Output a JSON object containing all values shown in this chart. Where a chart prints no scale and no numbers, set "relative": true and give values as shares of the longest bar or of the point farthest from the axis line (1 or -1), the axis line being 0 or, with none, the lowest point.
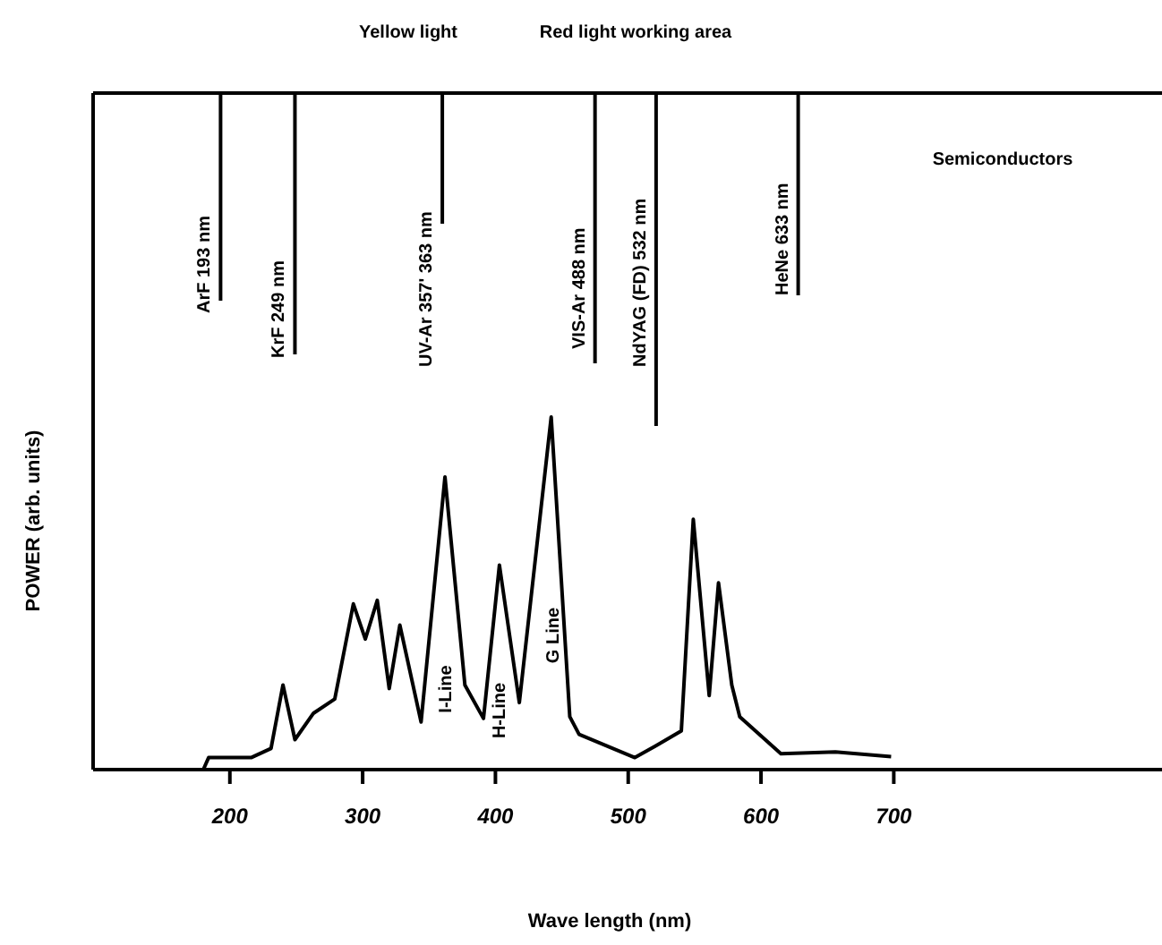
{
  "chart_data": {
    "type": "line",
    "relative": true,
    "xlabel": "Wave length (nm)",
    "ylabel": "POWER (arb. units)",
    "xlim": [
      97,
      902
    ],
    "xticks": [
      200,
      300,
      400,
      500,
      600,
      700
    ],
    "color": "#000000",
    "marker": "none",
    "line_style": "solid",
    "x": [
      180,
      184,
      216,
      231,
      240,
      249,
      263,
      279,
      293,
      302,
      311,
      320,
      328,
      344,
      362,
      377,
      391,
      403,
      418,
      442,
      456,
      463,
      505,
      521,
      540,
      549,
      561,
      568,
      578,
      584,
      615,
      656,
      698
    ],
    "values": [
      0,
      0.034,
      0.034,
      0.06,
      0.24,
      0.085,
      0.16,
      0.2,
      0.47,
      0.37,
      0.48,
      0.23,
      0.41,
      0.135,
      0.83,
      0.24,
      0.145,
      0.58,
      0.19,
      1,
      0.15,
      0.1,
      0.034,
      0.068,
      0.11,
      0.71,
      0.21,
      0.53,
      0.24,
      0.15,
      0.045,
      0.05,
      0.037
    ],
    "ref_lines": [
      {
        "axis": "x",
        "value": 193,
        "label": "ArF 193 nm"
      },
      {
        "axis": "x",
        "value": 249,
        "label": "KrF 249 nm"
      },
      {
        "axis": "x",
        "value": 360,
        "label": "UV-Ar 357' 363 nm"
      },
      {
        "axis": "x",
        "value": 475,
        "label": "VIS-Ar 488 nm"
      },
      {
        "axis": "x",
        "value": 521,
        "label": "NdYAG (FD) 532 nm"
      },
      {
        "axis": "x",
        "value": 628,
        "label": "HeNe 633 nm"
      }
    ],
    "annotations": [
      "Yellow light",
      "Red light working area",
      "Semiconductors",
      "I-Line",
      "H-Line",
      "G Line"
    ]
  }
}
